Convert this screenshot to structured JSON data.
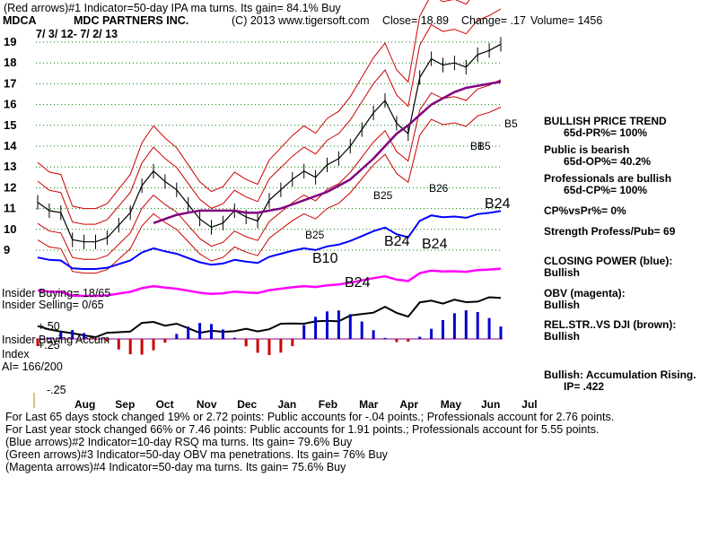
{
  "header": {
    "line1": "(Red arrows)#1 Indicator=50-day IPA ma turns. Its gain= 84.1% Buy",
    "symbol": "MDCA",
    "company": "MDC PARTNERS INC.",
    "copyright": "(C) 2013 www.tigersoft.com",
    "close": "Close=  18.89",
    "change": "Change= .17",
    "volume": "Volume= 1456",
    "date_range": "7/ 3/ 12- 7/ 2/ 13"
  },
  "chart_data": {
    "type": "line",
    "title": "MDC PARTNERS INC. (MDCA)",
    "y_ticks": [
      "19",
      "18",
      "17",
      "16",
      "15",
      "14",
      "13",
      "12",
      "11",
      "10",
      "9"
    ],
    "y_range": [
      9,
      19
    ],
    "x_ticks": [
      "Aug",
      "Sep",
      "Oct",
      "Nov",
      "Dec",
      "Jan",
      "Feb",
      "Mar",
      "Apr",
      "May",
      "Jun",
      "Jul"
    ],
    "series": [
      {
        "name": "Price",
        "values": [
          11.3,
          10.9,
          10.8,
          9.5,
          9.4,
          9.4,
          9.6,
          10.2,
          10.8,
          12.1,
          12.8,
          12.3,
          11.9,
          11.2,
          10.5,
          10.1,
          10.3,
          10.9,
          10.6,
          10.4,
          11.4,
          11.9,
          12.4,
          12.8,
          12.5,
          13.1,
          13.4,
          14.0,
          14.8,
          15.6,
          16.2,
          15.1,
          14.6,
          17.3,
          18.2,
          17.9,
          18.0,
          17.8,
          18.4,
          18.6,
          18.9
        ]
      },
      {
        "name": "50-day MA",
        "values": [
          null,
          null,
          null,
          null,
          null,
          null,
          null,
          null,
          null,
          null,
          10.3,
          10.5,
          10.7,
          10.8,
          10.9,
          10.9,
          10.9,
          10.9,
          10.8,
          10.8,
          10.9,
          11.0,
          11.2,
          11.4,
          11.6,
          11.8,
          12.1,
          12.4,
          12.9,
          13.4,
          14.0,
          14.6,
          15.0,
          15.5,
          16.0,
          16.3,
          16.6,
          16.8,
          16.9,
          17.0,
          17.1
        ]
      }
    ],
    "arrow_labels": [
      "B25",
      "B10",
      "B24",
      "B25",
      "B24",
      "B24",
      "B26",
      "B5",
      "B1",
      "B5",
      "B24"
    ],
    "indicator_labels": {
      "insider_buying": "Insider Buying= 18/65",
      "insider_selling": "Insider Selling= 0/65",
      "accum_title": "Insider Buying Accum",
      "accum_index": "Index",
      "ai": "AI= 166/200",
      "level_pos50": "+.50",
      "level_pos25": "+.25",
      "level_neg25": "-.25"
    }
  },
  "side_panel": {
    "trend": "BULLISH PRICE TREND",
    "pr": "65d-PR%= 100%",
    "public": "Public is bearish",
    "op": "65d-OP%= 40.2%",
    "pros": "Professionals are bullish",
    "cp": "65d-CP%= 100%",
    "cpvspr": "CP%vsPr%=  0%",
    "strength": "Strength Profess/Pub= 69",
    "closing_power": "CLOSING POWER (blue):",
    "closing_power_val": "Bullish",
    "obv": "OBV (magenta):",
    "obv_val": "Bullish",
    "relstr": "REL.STR..VS DJI (brown):",
    "relstr_val": "Bullish",
    "accum": "Bullish: Accumulation Rising.",
    "ip": "IP=  .422"
  },
  "footer": {
    "line1": "For Last 65 days stock changed  19% or  2.72 points:  Public accounts for -.04 points.;  Professionals account for  2.76 points.",
    "line2": "For Last year stock changed  66% or  7.46 points:  Public accounts for  1.91 points.;  Professionals account for  5.55 points.",
    "line3": "(Blue arrows)#2 Indicator=10-day RSQ ma turns. Its gain= 79.6% Buy",
    "line4": "(Green arrows)#3 Indicator=50-day OBV ma penetrations. Its gain= 76% Buy",
    "line5": "(Magenta arrows)#4 Indicator=50-day ma turns. Its gain= 75.6% Buy"
  },
  "colors": {
    "price": "#000000",
    "band": "#cc0000",
    "ma": "#800080",
    "closing_power": "#0000ff",
    "obv": "#ff00ff",
    "accum_pos": "#0000cc",
    "accum_neg": "#cc0000",
    "grid": "#008000"
  }
}
